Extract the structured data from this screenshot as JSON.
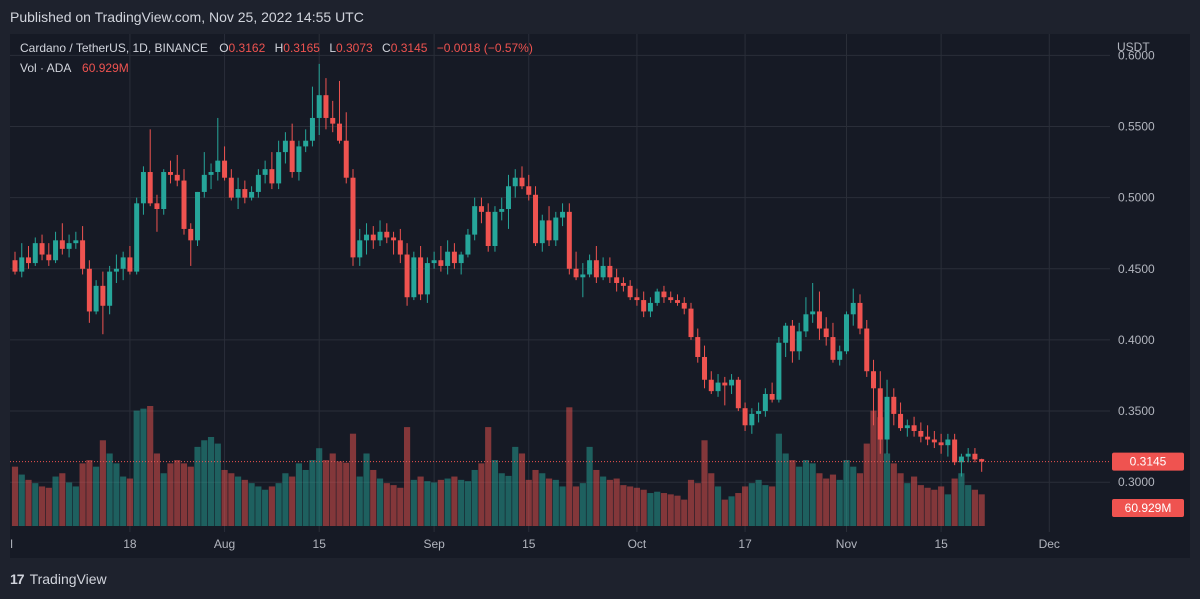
{
  "header": {
    "published": "Published on TradingView.com, Nov 25, 2022 14:55 UTC"
  },
  "legend": {
    "symbol": "Cardano / TetherUS, 1D, BINANCE",
    "o_label": "O",
    "o_value": "0.3162",
    "h_label": "H",
    "h_value": "0.3165",
    "l_label": "L",
    "l_value": "0.3073",
    "c_label": "C",
    "c_value": "0.3145",
    "change": "−0.0018 (−0.57%)",
    "vol_label": "Vol · ADA",
    "vol_value": "60.929M"
  },
  "footer": {
    "logo_mark": "17",
    "brand": "TradingView"
  },
  "colors": {
    "up": "#26a69a",
    "down": "#ef5350",
    "grid": "#2a2e39",
    "text": "#b2b5be",
    "bg": "#161a25"
  },
  "chart_data": {
    "type": "candlestick",
    "currency": "USDT",
    "ylim": [
      0.265,
      0.615
    ],
    "y_ticks": [
      "0.6000",
      "0.5500",
      "0.5000",
      "0.4500",
      "0.4000",
      "0.3500",
      "0.3000"
    ],
    "x_ticks": [
      {
        "day": -1,
        "label": "ul"
      },
      {
        "day": 17,
        "label": "18"
      },
      {
        "day": 31,
        "label": "Aug"
      },
      {
        "day": 45,
        "label": "15"
      },
      {
        "day": 62,
        "label": "Sep"
      },
      {
        "day": 76,
        "label": "15"
      },
      {
        "day": 92,
        "label": "Oct"
      },
      {
        "day": 108,
        "label": "17"
      },
      {
        "day": 123,
        "label": "Nov"
      },
      {
        "day": 137,
        "label": "15"
      },
      {
        "day": 153,
        "label": "Dec"
      }
    ],
    "last_price": "0.3145",
    "last_volume": "60.929M",
    "volume_max": 182,
    "candles": [
      [
        0.456,
        0.462,
        0.446,
        0.448,
        90
      ],
      [
        0.448,
        0.468,
        0.444,
        0.458,
        78
      ],
      [
        0.458,
        0.466,
        0.45,
        0.454,
        70
      ],
      [
        0.454,
        0.472,
        0.452,
        0.468,
        65
      ],
      [
        0.468,
        0.474,
        0.456,
        0.46,
        60
      ],
      [
        0.46,
        0.468,
        0.452,
        0.456,
        58
      ],
      [
        0.456,
        0.476,
        0.454,
        0.47,
        75
      ],
      [
        0.47,
        0.482,
        0.46,
        0.464,
        80
      ],
      [
        0.464,
        0.474,
        0.458,
        0.468,
        66
      ],
      [
        0.468,
        0.476,
        0.464,
        0.47,
        60
      ],
      [
        0.47,
        0.48,
        0.446,
        0.45,
        95
      ],
      [
        0.45,
        0.456,
        0.412,
        0.42,
        100
      ],
      [
        0.42,
        0.442,
        0.418,
        0.438,
        90
      ],
      [
        0.438,
        0.448,
        0.404,
        0.424,
        130
      ],
      [
        0.424,
        0.452,
        0.418,
        0.448,
        110
      ],
      [
        0.448,
        0.46,
        0.44,
        0.45,
        95
      ],
      [
        0.45,
        0.462,
        0.442,
        0.458,
        75
      ],
      [
        0.458,
        0.466,
        0.446,
        0.448,
        72
      ],
      [
        0.448,
        0.5,
        0.446,
        0.496,
        175
      ],
      [
        0.496,
        0.522,
        0.488,
        0.518,
        178
      ],
      [
        0.518,
        0.548,
        0.494,
        0.496,
        182
      ],
      [
        0.496,
        0.502,
        0.476,
        0.492,
        110
      ],
      [
        0.492,
        0.52,
        0.488,
        0.518,
        80
      ],
      [
        0.518,
        0.526,
        0.51,
        0.516,
        95
      ],
      [
        0.516,
        0.53,
        0.508,
        0.512,
        100
      ],
      [
        0.512,
        0.52,
        0.474,
        0.478,
        95
      ],
      [
        0.478,
        0.482,
        0.452,
        0.47,
        90
      ],
      [
        0.47,
        0.504,
        0.466,
        0.504,
        120
      ],
      [
        0.504,
        0.532,
        0.5,
        0.516,
        130
      ],
      [
        0.516,
        0.524,
        0.506,
        0.518,
        135
      ],
      [
        0.518,
        0.556,
        0.512,
        0.526,
        125
      ],
      [
        0.526,
        0.536,
        0.512,
        0.514,
        85
      ],
      [
        0.514,
        0.52,
        0.498,
        0.5,
        80
      ],
      [
        0.5,
        0.514,
        0.492,
        0.506,
        75
      ],
      [
        0.506,
        0.512,
        0.496,
        0.5,
        70
      ],
      [
        0.5,
        0.508,
        0.498,
        0.504,
        65
      ],
      [
        0.504,
        0.52,
        0.5,
        0.516,
        60
      ],
      [
        0.516,
        0.526,
        0.51,
        0.52,
        55
      ],
      [
        0.52,
        0.532,
        0.506,
        0.51,
        60
      ],
      [
        0.51,
        0.54,
        0.506,
        0.532,
        65
      ],
      [
        0.532,
        0.546,
        0.524,
        0.54,
        80
      ],
      [
        0.54,
        0.552,
        0.514,
        0.518,
        75
      ],
      [
        0.518,
        0.54,
        0.512,
        0.536,
        95
      ],
      [
        0.536,
        0.548,
        0.532,
        0.54,
        85
      ],
      [
        0.54,
        0.578,
        0.536,
        0.556,
        100
      ],
      [
        0.556,
        0.594,
        0.544,
        0.572,
        118
      ],
      [
        0.572,
        0.584,
        0.548,
        0.556,
        100
      ],
      [
        0.556,
        0.568,
        0.546,
        0.552,
        110
      ],
      [
        0.552,
        0.582,
        0.538,
        0.54,
        98
      ],
      [
        0.54,
        0.56,
        0.51,
        0.514,
        96
      ],
      [
        0.514,
        0.52,
        0.452,
        0.458,
        140
      ],
      [
        0.458,
        0.478,
        0.452,
        0.47,
        75
      ],
      [
        0.47,
        0.482,
        0.46,
        0.474,
        110
      ],
      [
        0.474,
        0.48,
        0.464,
        0.47,
        85
      ],
      [
        0.47,
        0.484,
        0.466,
        0.476,
        72
      ],
      [
        0.476,
        0.482,
        0.468,
        0.472,
        65
      ],
      [
        0.472,
        0.476,
        0.46,
        0.47,
        62
      ],
      [
        0.47,
        0.478,
        0.454,
        0.46,
        58
      ],
      [
        0.46,
        0.468,
        0.424,
        0.43,
        150
      ],
      [
        0.43,
        0.462,
        0.428,
        0.458,
        70
      ],
      [
        0.458,
        0.466,
        0.428,
        0.432,
        75
      ],
      [
        0.432,
        0.458,
        0.426,
        0.454,
        68
      ],
      [
        0.454,
        0.462,
        0.45,
        0.456,
        66
      ],
      [
        0.456,
        0.466,
        0.448,
        0.452,
        70
      ],
      [
        0.452,
        0.47,
        0.446,
        0.462,
        72
      ],
      [
        0.462,
        0.468,
        0.45,
        0.454,
        75
      ],
      [
        0.454,
        0.462,
        0.446,
        0.46,
        70
      ],
      [
        0.46,
        0.478,
        0.458,
        0.474,
        68
      ],
      [
        0.474,
        0.5,
        0.47,
        0.494,
        85
      ],
      [
        0.494,
        0.5,
        0.482,
        0.49,
        95
      ],
      [
        0.49,
        0.496,
        0.462,
        0.466,
        150
      ],
      [
        0.466,
        0.494,
        0.462,
        0.49,
        100
      ],
      [
        0.49,
        0.5,
        0.484,
        0.492,
        80
      ],
      [
        0.492,
        0.516,
        0.478,
        0.508,
        76
      ],
      [
        0.508,
        0.52,
        0.5,
        0.514,
        120
      ],
      [
        0.514,
        0.522,
        0.506,
        0.508,
        110
      ],
      [
        0.508,
        0.516,
        0.498,
        0.502,
        70
      ],
      [
        0.502,
        0.508,
        0.466,
        0.468,
        85
      ],
      [
        0.468,
        0.488,
        0.462,
        0.484,
        80
      ],
      [
        0.484,
        0.494,
        0.466,
        0.47,
        72
      ],
      [
        0.47,
        0.49,
        0.466,
        0.486,
        70
      ],
      [
        0.486,
        0.496,
        0.48,
        0.49,
        60
      ],
      [
        0.49,
        0.496,
        0.446,
        0.45,
        180
      ],
      [
        0.45,
        0.462,
        0.442,
        0.444,
        60
      ],
      [
        0.444,
        0.454,
        0.43,
        0.446,
        65
      ],
      [
        0.446,
        0.46,
        0.444,
        0.456,
        120
      ],
      [
        0.456,
        0.466,
        0.44,
        0.444,
        85
      ],
      [
        0.444,
        0.458,
        0.442,
        0.452,
        75
      ],
      [
        0.452,
        0.458,
        0.44,
        0.444,
        70
      ],
      [
        0.444,
        0.45,
        0.434,
        0.44,
        72
      ],
      [
        0.44,
        0.444,
        0.434,
        0.438,
        62
      ],
      [
        0.438,
        0.442,
        0.428,
        0.43,
        60
      ],
      [
        0.43,
        0.436,
        0.424,
        0.428,
        58
      ],
      [
        0.428,
        0.434,
        0.416,
        0.42,
        55
      ],
      [
        0.42,
        0.43,
        0.416,
        0.426,
        50
      ],
      [
        0.426,
        0.436,
        0.424,
        0.434,
        52
      ],
      [
        0.434,
        0.438,
        0.426,
        0.43,
        50
      ],
      [
        0.43,
        0.434,
        0.426,
        0.428,
        48
      ],
      [
        0.428,
        0.432,
        0.424,
        0.426,
        46
      ],
      [
        0.426,
        0.43,
        0.418,
        0.422,
        40
      ],
      [
        0.422,
        0.426,
        0.4,
        0.402,
        70
      ],
      [
        0.402,
        0.408,
        0.384,
        0.388,
        65
      ],
      [
        0.388,
        0.396,
        0.366,
        0.372,
        130
      ],
      [
        0.372,
        0.378,
        0.362,
        0.364,
        80
      ],
      [
        0.364,
        0.376,
        0.36,
        0.37,
        60
      ],
      [
        0.37,
        0.374,
        0.354,
        0.368,
        40
      ],
      [
        0.368,
        0.376,
        0.362,
        0.372,
        45
      ],
      [
        0.372,
        0.374,
        0.35,
        0.352,
        50
      ],
      [
        0.352,
        0.356,
        0.336,
        0.34,
        60
      ],
      [
        0.34,
        0.352,
        0.334,
        0.348,
        65
      ],
      [
        0.348,
        0.356,
        0.342,
        0.35,
        70
      ],
      [
        0.35,
        0.366,
        0.346,
        0.362,
        62
      ],
      [
        0.362,
        0.37,
        0.356,
        0.358,
        60
      ],
      [
        0.358,
        0.402,
        0.356,
        0.398,
        140
      ],
      [
        0.398,
        0.412,
        0.388,
        0.41,
        110
      ],
      [
        0.41,
        0.414,
        0.384,
        0.392,
        100
      ],
      [
        0.392,
        0.412,
        0.386,
        0.406,
        90
      ],
      [
        0.406,
        0.43,
        0.402,
        0.418,
        100
      ],
      [
        0.418,
        0.44,
        0.412,
        0.42,
        95
      ],
      [
        0.42,
        0.434,
        0.4,
        0.408,
        80
      ],
      [
        0.408,
        0.416,
        0.396,
        0.402,
        72
      ],
      [
        0.402,
        0.412,
        0.384,
        0.386,
        78
      ],
      [
        0.386,
        0.396,
        0.382,
        0.392,
        70
      ],
      [
        0.392,
        0.42,
        0.39,
        0.418,
        100
      ],
      [
        0.418,
        0.436,
        0.41,
        0.426,
        90
      ],
      [
        0.426,
        0.432,
        0.404,
        0.408,
        80
      ],
      [
        0.408,
        0.414,
        0.374,
        0.378,
        125
      ],
      [
        0.378,
        0.386,
        0.34,
        0.366,
        175
      ],
      [
        0.366,
        0.378,
        0.32,
        0.33,
        165
      ],
      [
        0.33,
        0.372,
        0.32,
        0.36,
        110
      ],
      [
        0.36,
        0.366,
        0.34,
        0.348,
        95
      ],
      [
        0.348,
        0.356,
        0.336,
        0.338,
        80
      ],
      [
        0.338,
        0.344,
        0.332,
        0.34,
        65
      ],
      [
        0.34,
        0.346,
        0.332,
        0.336,
        75
      ],
      [
        0.336,
        0.342,
        0.328,
        0.332,
        62
      ],
      [
        0.332,
        0.34,
        0.326,
        0.33,
        58
      ],
      [
        0.33,
        0.336,
        0.324,
        0.328,
        55
      ],
      [
        0.328,
        0.334,
        0.32,
        0.326,
        60
      ],
      [
        0.326,
        0.334,
        0.318,
        0.33,
        48
      ],
      [
        0.33,
        0.334,
        0.312,
        0.314,
        72
      ],
      [
        0.314,
        0.32,
        0.304,
        0.318,
        80
      ],
      [
        0.318,
        0.324,
        0.314,
        0.32,
        62
      ],
      [
        0.32,
        0.324,
        0.314,
        0.316,
        55
      ],
      [
        0.3162,
        0.3165,
        0.3073,
        0.3145,
        48
      ]
    ]
  }
}
